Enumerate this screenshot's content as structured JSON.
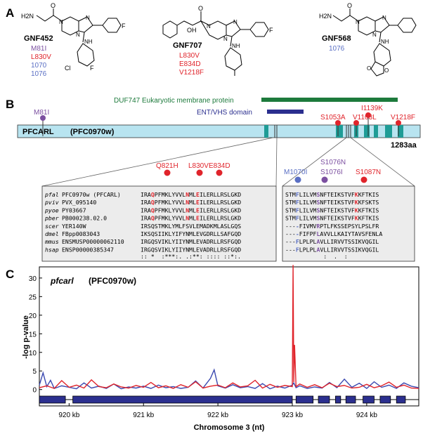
{
  "panel_a": {
    "label": "A",
    "compounds": [
      {
        "name": "GNF452",
        "mutations": [
          {
            "text": "M81I",
            "color": "#7b4fa0"
          },
          {
            "text": "L830V",
            "color": "#e0242b"
          },
          {
            "text": "1070",
            "color": "#5a6fc4"
          },
          {
            "text": "1076",
            "color": "#5a6fc4"
          }
        ],
        "atom_labels": {
          "h2n": "H2N",
          "o": "O",
          "n1": "N",
          "n2": "N",
          "n3": "N",
          "nh": "NH",
          "f": "F",
          "cl": "Cl",
          "f2": "F"
        }
      },
      {
        "name": "GNF707",
        "mutations": [
          {
            "text": "L830V",
            "color": "#e0242b"
          },
          {
            "text": "E834D",
            "color": "#e0242b"
          },
          {
            "text": "V1218F",
            "color": "#e0242b"
          }
        ],
        "atom_labels": {
          "o": "O",
          "oh": "OH",
          "n1": "N",
          "n2": "N",
          "n3": "N",
          "nh": "NH",
          "f": "F"
        }
      },
      {
        "name": "GNF568",
        "mutations": [
          {
            "text": "1076",
            "color": "#5a6fc4"
          }
        ],
        "atom_labels": {
          "h2n": "H2N",
          "o": "O",
          "n1": "N",
          "n2": "N",
          "n3": "N",
          "nh": "NH",
          "o1": "O",
          "o2": "O"
        }
      }
    ]
  },
  "panel_b": {
    "label": "B",
    "duf_label": "DUF747 Eukaryotic membrane protein",
    "ent_label": "ENT/VHS domain",
    "protein_name": "PFCARL",
    "protein_id": "(PFC0970w)",
    "length_label": "1283aa",
    "top_mutations": [
      {
        "text": "M81I",
        "color": "#7b4fa0"
      },
      {
        "text": "S1053A",
        "color": "#e0242b"
      },
      {
        "text": "V1103L",
        "color": "#e0242b"
      },
      {
        "text": "I1139K",
        "color": "#e0242b"
      },
      {
        "text": "V1218F",
        "color": "#e0242b"
      }
    ],
    "left_mutations": [
      {
        "text": "Q821H",
        "color": "#e0242b"
      },
      {
        "text": "L830V",
        "color": "#e0242b"
      },
      {
        "text": "E834D",
        "color": "#e0242b"
      }
    ],
    "right_mutations": [
      {
        "text": "M1070I",
        "color": "#5a6fc4"
      },
      {
        "text": "S1076N",
        "color": "#7b4fa0"
      },
      {
        "text": "S1076I",
        "color": "#7b4fa0"
      },
      {
        "text": "S1087N",
        "color": "#e0242b"
      }
    ],
    "alignment_rows": [
      {
        "species": "pfal",
        "id": "PFC0970w (PFCARL)",
        "left": "IRAQPFMKLYVVLNMLEILERLLRSLGKD",
        "right": "STMFLILVMSNFTEIKSTVFKKFTKIS"
      },
      {
        "species": "pviv",
        "id": "PVX_095140",
        "left": "IRAQPFMKLYVVLNMLEILERLLRSLGKD",
        "right": "STMFLILVMSNFTEIKSTVFKKFSKTS"
      },
      {
        "species": "pyoe",
        "id": "PY03667",
        "left": "IRAQPFMKLYVVLNMLEILERLLRSLGKD",
        "right": "STMFLILVMSNFTEIKSTVFKKFTKIS"
      },
      {
        "species": "pber",
        "id": "PB000238.02.0",
        "left": "IRAQPFMKLYVVLNMLEILERLLRSLGKD",
        "right": "STMFLILVMSNFTEIKSTVFKKFTKIS"
      },
      {
        "species": "scer",
        "id": "YER140W",
        "left": "IRSQSTMKLYMLFSVLEMADKMLASLGQS",
        "right": "----FIVMVRPTLFKSSEPSYLPSLFR"
      },
      {
        "species": "dmel",
        "id": "FBpp0083043",
        "left": "IKSQSIIKLYIFYNMLEVGDRLLSAFGQD",
        "right": "----FIFPFLAVVLLKAIYTAVSFENLA"
      },
      {
        "species": "mmus",
        "id": "ENSMUSP00000062110",
        "left": "IRGQSVIKLYIIYNMLEVADRLLRSFGQD",
        "right": "---FLPLPLAVLLIRVVTSSIKVQGIL"
      },
      {
        "species": "hsap",
        "id": "ENSP00000385347",
        "left": "IRGQSVIKLYIIYNMLEVADRLLRSFGQD",
        "right": "---FLPLPLAVLLIRVVTSSIKVQGIL"
      }
    ],
    "conservation_left": ":: *  :***:. .:**: :::: ::*:.",
    "conservation_right": "           :  .  :"
  },
  "panel_c": {
    "label": "C",
    "plot_title_gene": "pfcarl",
    "plot_title_id": "(PFC0970w)",
    "chart_data": {
      "type": "line",
      "title": "pfcarl (PFC0970w)",
      "xlabel": "Chromosome 3 (nt)",
      "ylabel": "-log p-value",
      "ylim": [
        -1,
        33
      ],
      "xlim": [
        919.6,
        924.7
      ],
      "yticks": [
        0,
        5,
        10,
        15,
        20,
        25,
        30
      ],
      "xticks": [
        {
          "value": 920,
          "label": "920 kb"
        },
        {
          "value": 921,
          "label": "921 kb"
        },
        {
          "value": 922,
          "label": "922 kb"
        },
        {
          "value": 923,
          "label": "923 kb"
        },
        {
          "value": 924,
          "label": "924 kb"
        }
      ],
      "series": [
        {
          "color": "#3b49b0",
          "x": [
            919.6,
            919.65,
            919.7,
            919.75,
            919.8,
            919.9,
            920.0,
            920.1,
            920.2,
            920.3,
            920.4,
            920.5,
            920.6,
            920.7,
            920.8,
            920.9,
            921.0,
            921.1,
            921.2,
            921.3,
            921.4,
            921.5,
            921.6,
            921.7,
            921.8,
            921.9,
            921.95,
            922.0,
            922.1,
            922.2,
            922.3,
            922.4,
            922.5,
            922.6,
            922.7,
            922.8,
            922.9,
            923.0,
            923.02,
            923.05,
            923.1,
            923.2,
            923.3,
            923.4,
            923.5,
            923.6,
            923.7,
            923.8,
            923.9,
            924.0,
            924.1,
            924.2,
            924.3,
            924.4,
            924.5,
            924.6,
            924.7
          ],
          "y": [
            1.2,
            4.5,
            0.8,
            2.5,
            0.3,
            1.0,
            0.6,
            0.2,
            1.8,
            0.4,
            0.9,
            0.3,
            1.5,
            0.2,
            0.7,
            0.4,
            0.9,
            0.3,
            1.2,
            0.5,
            0.8,
            0.3,
            0.6,
            2.3,
            0.4,
            3.0,
            5.3,
            1.0,
            0.4,
            1.3,
            0.5,
            0.8,
            0.3,
            1.6,
            0.2,
            0.9,
            0.4,
            1.2,
            1.8,
            0.5,
            1.0,
            0.3,
            0.7,
            0.4,
            1.9,
            0.5,
            2.8,
            0.6,
            1.7,
            0.3,
            2.1,
            0.6,
            1.2,
            0.3,
            1.8,
            0.9,
            0.5
          ]
        },
        {
          "color": "#e0242b",
          "x": [
            919.6,
            919.7,
            919.8,
            919.9,
            920.0,
            920.1,
            920.2,
            920.3,
            920.4,
            920.5,
            920.6,
            920.7,
            920.8,
            920.9,
            921.0,
            921.1,
            921.2,
            921.3,
            921.4,
            921.5,
            921.6,
            921.7,
            921.8,
            921.9,
            922.0,
            922.1,
            922.2,
            922.3,
            922.4,
            922.5,
            922.6,
            922.7,
            922.8,
            922.9,
            923.0,
            923.01,
            923.02,
            923.03,
            923.05,
            923.1,
            923.2,
            923.3,
            923.4,
            923.5,
            923.6,
            923.7,
            923.8,
            923.9,
            924.0,
            924.1,
            924.2,
            924.3,
            924.4,
            924.5,
            924.6,
            924.7
          ],
          "y": [
            0.5,
            1.0,
            0.3,
            2.4,
            0.6,
            1.2,
            0.4,
            2.6,
            0.8,
            0.5,
            1.5,
            0.7,
            0.4,
            1.1,
            0.6,
            1.9,
            0.5,
            1.0,
            0.3,
            1.3,
            0.6,
            2.1,
            0.4,
            0.9,
            1.2,
            0.5,
            1.8,
            0.7,
            1.0,
            2.5,
            0.4,
            1.4,
            0.6,
            1.1,
            0.8,
            33.5,
            2.0,
            12.0,
            0.8,
            1.5,
            0.6,
            1.3,
            0.5,
            1.7,
            0.8,
            1.1,
            0.4,
            0.6,
            1.4,
            0.5,
            1.0,
            2.0,
            0.6,
            1.2,
            0.4,
            0.3
          ]
        }
      ],
      "gene_track": [
        [
          919.6,
          919.95
        ],
        [
          920.05,
          923.0
        ],
        [
          923.05,
          923.28
        ],
        [
          923.35,
          923.5
        ],
        [
          923.58,
          923.65
        ],
        [
          923.72,
          923.85
        ],
        [
          923.95,
          924.1
        ],
        [
          924.18,
          924.32
        ],
        [
          924.4,
          924.52
        ]
      ]
    }
  }
}
